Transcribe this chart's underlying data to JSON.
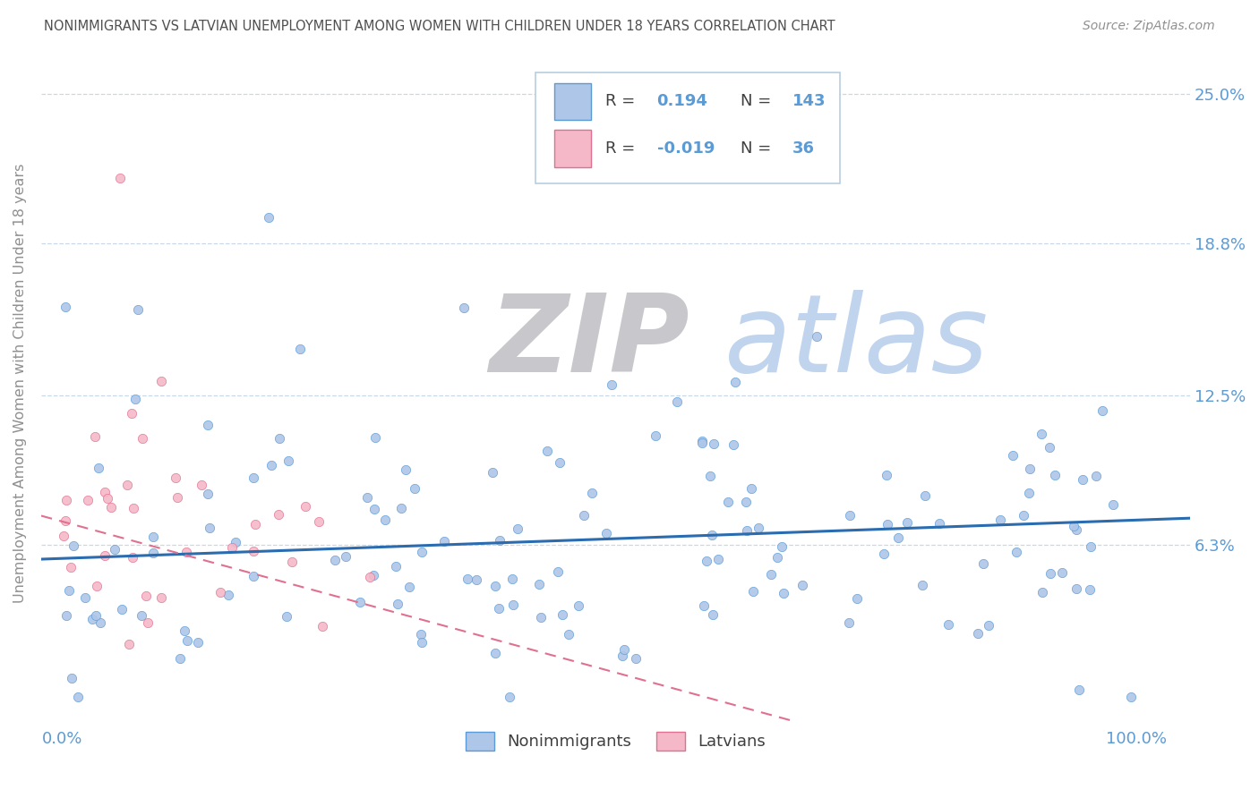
{
  "title": "NONIMMIGRANTS VS LATVIAN UNEMPLOYMENT AMONG WOMEN WITH CHILDREN UNDER 18 YEARS CORRELATION CHART",
  "source": "Source: ZipAtlas.com",
  "ylabel": "Unemployment Among Women with Children Under 18 years",
  "y_tick_labels": [
    "6.3%",
    "12.5%",
    "18.8%",
    "25.0%"
  ],
  "y_tick_values": [
    0.063,
    0.125,
    0.188,
    0.25
  ],
  "x_tick_labels": [
    "0.0%",
    "100.0%"
  ],
  "ylim": [
    -0.01,
    0.27
  ],
  "xlim": [
    -0.02,
    1.05
  ],
  "R_nonimm": 0.194,
  "N_nonimm": 143,
  "R_latvian": -0.019,
  "N_latvian": 36,
  "color_nonimm_fill": "#aec6e8",
  "color_nonimm_edge": "#5b9bd5",
  "color_latvian_fill": "#f4b8c8",
  "color_latvian_edge": "#e07090",
  "color_nonimm_line": "#2b6cb0",
  "color_latvian_line": "#e07090",
  "watermark_ZIP_color": "#c8c8cc",
  "watermark_atlas_color": "#c0d4ee",
  "title_color": "#505050",
  "axis_value_color": "#5b9bd5",
  "legend_text_color": "#5b9bd5",
  "legend_label_color": "#404040",
  "background_color": "#ffffff",
  "grid_color": "#c8d8e8",
  "nonimm_seed": 12,
  "latvian_seed": 99
}
